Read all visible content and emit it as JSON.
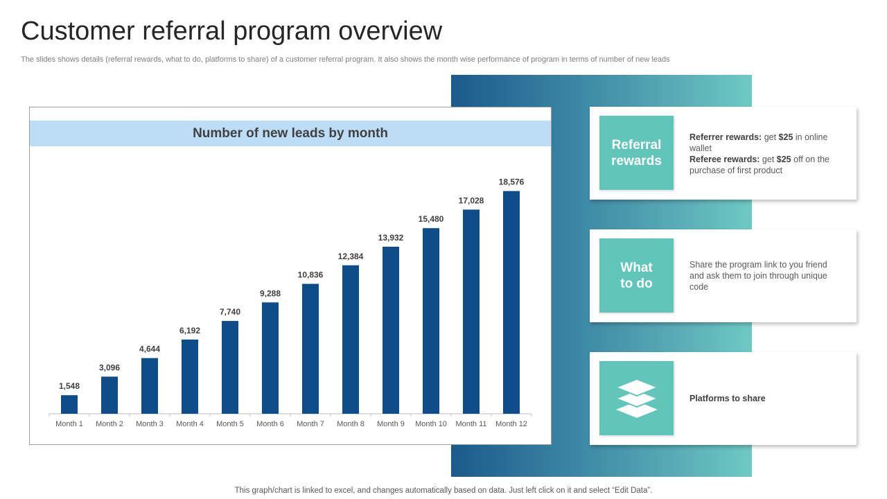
{
  "page": {
    "title": "Customer referral program overview",
    "subtitle": "The slides shows details (referral rewards, what to do, platforms to share) of a customer referral program. It also shows the month wise performance of program in terms of number of new leads",
    "footer": "This graph/chart is linked to excel,  and changes automatically based on data. Just left click on it and select “Edit Data”."
  },
  "chart_data": {
    "type": "bar",
    "title": "Number of new leads by month",
    "categories": [
      "Month 1",
      "Month 2",
      "Month 3",
      "Month 4",
      "Month 5",
      "Month 6",
      "Month 7",
      "Month 8",
      "Month 9",
      "Month 10",
      "Month 11",
      "Month 12"
    ],
    "values": [
      1548,
      3096,
      4644,
      6192,
      7740,
      9288,
      10836,
      12384,
      13932,
      15480,
      17028,
      18576
    ],
    "data_labels": [
      "1,548",
      "3,096",
      "4,644",
      "6,192",
      "7,740",
      "9,288",
      "10,836",
      "12,384",
      "13,932",
      "15,480",
      "17,028",
      "18,576"
    ],
    "xlabel": "",
    "ylabel": "",
    "ylim": [
      0,
      20000
    ],
    "grid": false,
    "legend": "none",
    "bar_color": "#0e4d89"
  },
  "cards": {
    "referral": {
      "tile_line1": "Referral",
      "tile_line2": "rewards",
      "referrer_label": "Referrer rewards:",
      "referrer_pre": " get ",
      "referrer_amount": "$25",
      "referrer_post": " in online wallet",
      "referee_label": "Referee rewards:",
      "referee_pre": " get ",
      "referee_amount": "$25",
      "referee_post": " off on the purchase of first product"
    },
    "what_to_do": {
      "tile_line1": "What",
      "tile_line2": "to do",
      "text": "Share the program link to you friend and ask them to join through unique code"
    },
    "platforms": {
      "icon": "layers-icon",
      "label": "Platforms to share"
    }
  },
  "colors": {
    "tile": "#61c5bb",
    "chart_header": "#bddcf6",
    "gradient_start": "#1b5a8c",
    "gradient_end": "#6ec9c3"
  }
}
